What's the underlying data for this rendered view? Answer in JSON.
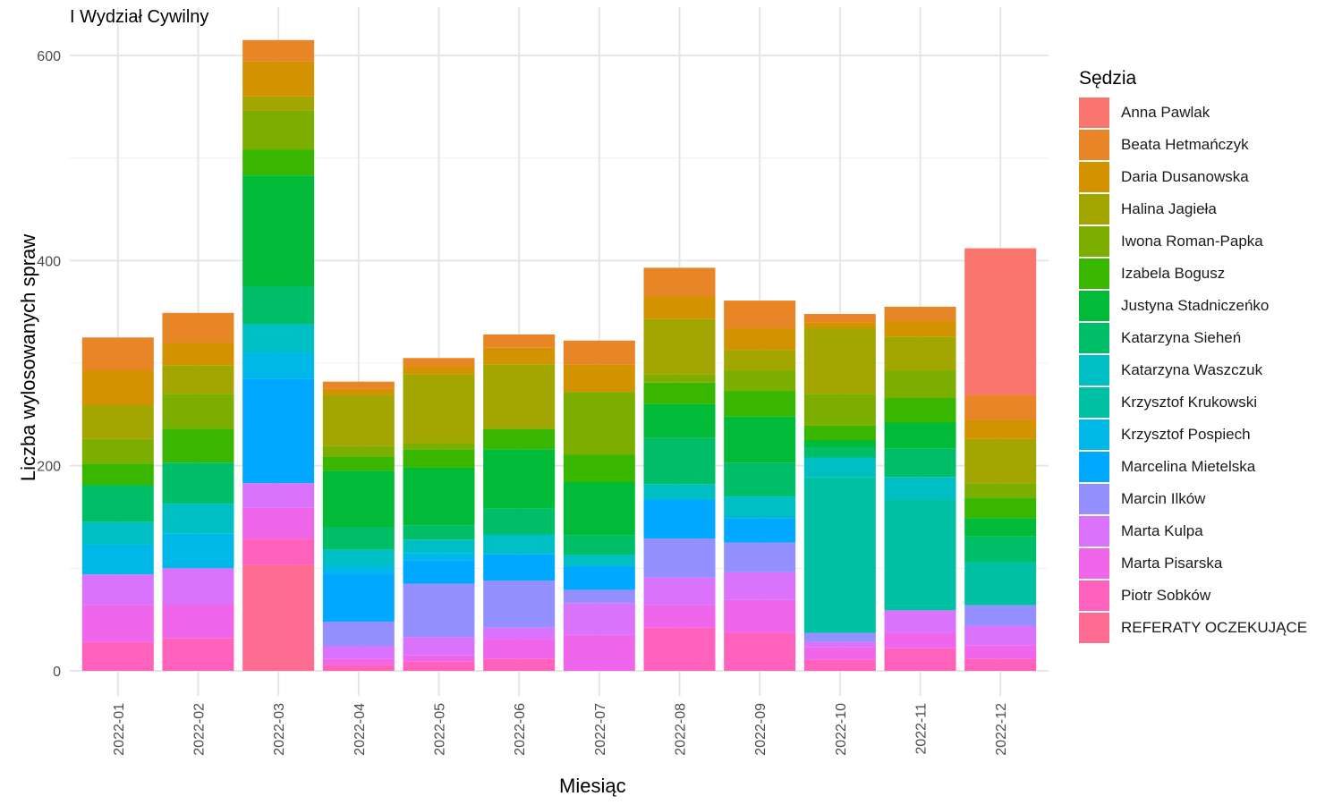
{
  "chart_data": {
    "type": "bar",
    "stacked": true,
    "title": "I Wydział Cywilny",
    "xlabel": "Miesiąc",
    "ylabel": "Liczba wylosowanych spraw",
    "ylim": [
      0,
      615
    ],
    "yticks": [
      0,
      200,
      400,
      600
    ],
    "grid": true,
    "legend_title": "Sędzia",
    "legend_position": "right",
    "categories": [
      "2022-01",
      "2022-02",
      "2022-03",
      "2022-04",
      "2022-05",
      "2022-06",
      "2022-07",
      "2022-08",
      "2022-09",
      "2022-10",
      "2022-11",
      "2022-12"
    ],
    "series": [
      {
        "name": "REFERATY OCZEKUJĄCE",
        "color": "#FF6C91",
        "values": [
          0,
          0,
          103,
          0,
          0,
          0,
          0,
          0,
          0,
          0,
          0,
          0
        ]
      },
      {
        "name": "Piotr Sobków",
        "color": "#FF62BC",
        "values": [
          28,
          32,
          26,
          6,
          9,
          12,
          0,
          42,
          37,
          11,
          22,
          12
        ]
      },
      {
        "name": "Marta Pisarska",
        "color": "#F066EA",
        "values": [
          36,
          33,
          30,
          6,
          6,
          19,
          35,
          22,
          32,
          12,
          15,
          13
        ]
      },
      {
        "name": "Marta Kulpa",
        "color": "#DB72FB",
        "values": [
          30,
          35,
          24,
          12,
          18,
          11,
          31,
          27,
          27,
          5,
          22,
          19
        ]
      },
      {
        "name": "Marcin Ilków",
        "color": "#9590FF",
        "values": [
          0,
          0,
          0,
          24,
          52,
          46,
          13,
          38,
          29,
          9,
          0,
          20
        ]
      },
      {
        "name": "Marcelina Mietelska",
        "color": "#00A9FF",
        "values": [
          0,
          0,
          102,
          47,
          23,
          26,
          23,
          38,
          24,
          0,
          0,
          0
        ]
      },
      {
        "name": "Krzysztof Pospiech",
        "color": "#00B8E7",
        "values": [
          29,
          34,
          25,
          7,
          7,
          0,
          0,
          0,
          0,
          0,
          0,
          0
        ]
      },
      {
        "name": "Krzysztof Krukowski",
        "color": "#00C1A3",
        "values": [
          0,
          0,
          0,
          0,
          0,
          0,
          0,
          0,
          0,
          152,
          108,
          42
        ]
      },
      {
        "name": "Katarzyna Waszczuk",
        "color": "#00BFC4",
        "values": [
          22,
          29,
          28,
          16,
          13,
          19,
          11,
          15,
          21,
          19,
          22,
          0
        ]
      },
      {
        "name": "Katarzyna Sieheń",
        "color": "#00BE67",
        "values": [
          36,
          40,
          37,
          22,
          14,
          25,
          19,
          45,
          33,
          10,
          28,
          25
        ]
      },
      {
        "name": "Justyna Stadniczeńko",
        "color": "#00BA38",
        "values": [
          0,
          0,
          108,
          55,
          56,
          58,
          52,
          33,
          45,
          7,
          25,
          18
        ]
      },
      {
        "name": "Izabela Bogusz",
        "color": "#39B600",
        "values": [
          21,
          33,
          25,
          14,
          18,
          20,
          27,
          21,
          25,
          14,
          24,
          20
        ]
      },
      {
        "name": "Iwona Roman-Papka",
        "color": "#7CAE00",
        "values": [
          24,
          34,
          38,
          10,
          6,
          0,
          61,
          8,
          20,
          31,
          27,
          14
        ]
      },
      {
        "name": "Halina Jagieła",
        "color": "#A3A500",
        "values": [
          33,
          28,
          14,
          50,
          67,
          63,
          0,
          54,
          20,
          64,
          33,
          43
        ]
      },
      {
        "name": "Daria Dusanowska",
        "color": "#D39200",
        "values": [
          34,
          22,
          34,
          6,
          8,
          16,
          27,
          22,
          21,
          6,
          15,
          19
        ]
      },
      {
        "name": "Beata Hetmańczyk",
        "color": "#E88526",
        "values": [
          32,
          29,
          21,
          7,
          8,
          13,
          23,
          28,
          27,
          8,
          14,
          24
        ]
      },
      {
        "name": "Anna Pawlak",
        "color": "#F8766D",
        "values": [
          0,
          0,
          0,
          0,
          0,
          0,
          0,
          0,
          0,
          0,
          0,
          143
        ]
      }
    ]
  }
}
